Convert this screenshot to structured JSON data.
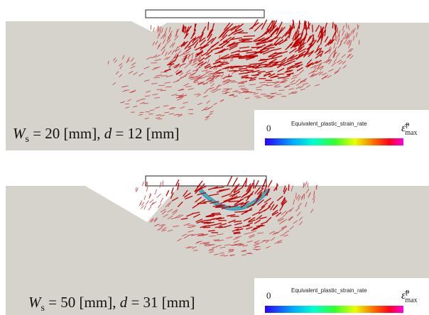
{
  "panels": [
    {
      "caption": {
        "w": "W",
        "w_sub": "s",
        "w_rest": " = 20 [mm], ",
        "d": "d",
        "d_rest": " = 12 [mm]"
      },
      "colorbar": {
        "min_label": "0",
        "title": "Equivalent_plastic_strain_rate",
        "max_symbol": "ε̄",
        "max_sup": "p",
        "max_sub": "max"
      }
    },
    {
      "caption": {
        "w": "W",
        "w_sub": "s",
        "w_rest": " = 50 [mm], ",
        "d": "d",
        "d_rest": " = 31 [mm]"
      },
      "colorbar": {
        "min_label": "0",
        "title": "Equivalent_plastic_strain_rate",
        "max_symbol": "ε̄",
        "max_sup": "p",
        "max_sub": "max"
      }
    }
  ]
}
